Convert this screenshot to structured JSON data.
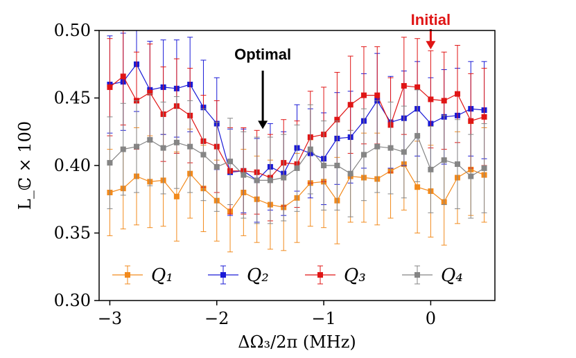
{
  "chart_data": {
    "type": "line",
    "xlabel": "ΔΩ₃/2π (MHz)",
    "ylabel": "L_ℂ × 100",
    "xlim": [
      -3.1,
      0.6
    ],
    "ylim": [
      0.3,
      0.5
    ],
    "xticks": [
      -3,
      -2,
      -1,
      0
    ],
    "xtick_labels": [
      "−3",
      "−2",
      "−1",
      "0"
    ],
    "yticks": [
      0.3,
      0.35,
      0.4,
      0.45,
      0.5
    ],
    "ytick_labels": [
      "0.30",
      "0.35",
      "0.40",
      "0.45",
      "0.50"
    ],
    "grid": false,
    "legend_position": "bottom",
    "legend": [
      "Q1",
      "Q2",
      "Q3",
      "Q4"
    ],
    "x": [
      -3.0,
      -2.875,
      -2.75,
      -2.625,
      -2.5,
      -2.375,
      -2.25,
      -2.125,
      -2.0,
      -1.875,
      -1.75,
      -1.625,
      -1.5,
      -1.375,
      -1.25,
      -1.125,
      -1.0,
      -0.875,
      -0.75,
      -0.625,
      -0.5,
      -0.375,
      -0.25,
      -0.125,
      0.0,
      0.125,
      0.25,
      0.375,
      0.5
    ],
    "series": [
      {
        "name": "Q1",
        "color": "#f28a1c",
        "values": [
          0.38,
          0.383,
          0.392,
          0.388,
          0.389,
          0.377,
          0.394,
          0.383,
          0.374,
          0.366,
          0.38,
          0.375,
          0.371,
          0.369,
          0.376,
          0.387,
          0.388,
          0.374,
          0.392,
          0.391,
          0.39,
          0.396,
          0.401,
          0.384,
          0.381,
          0.373,
          0.391,
          0.397,
          0.393
        ],
        "errors": [
          0.032,
          0.03,
          0.036,
          0.034,
          0.034,
          0.033,
          0.033,
          0.032,
          0.03,
          0.03,
          0.032,
          0.032,
          0.033,
          0.032,
          0.033,
          0.032,
          0.034,
          0.032,
          0.034,
          0.033,
          0.034,
          0.035,
          0.034,
          0.034,
          0.034,
          0.032,
          0.034,
          0.034,
          0.035
        ]
      },
      {
        "name": "Q2",
        "color": "#1a1ad6",
        "values": [
          0.46,
          0.462,
          0.475,
          0.456,
          0.458,
          0.457,
          0.46,
          0.443,
          0.431,
          0.395,
          0.396,
          0.389,
          0.399,
          0.394,
          0.413,
          0.409,
          0.405,
          0.42,
          0.421,
          0.433,
          0.448,
          0.432,
          0.435,
          0.442,
          0.431,
          0.436,
          0.437,
          0.442,
          0.441
        ],
        "errors": [
          0.036,
          0.036,
          0.035,
          0.036,
          0.035,
          0.036,
          0.035,
          0.035,
          0.034,
          0.032,
          0.031,
          0.031,
          0.032,
          0.031,
          0.032,
          0.033,
          0.034,
          0.034,
          0.034,
          0.035,
          0.035,
          0.034,
          0.035,
          0.035,
          0.034,
          0.035,
          0.035,
          0.035,
          0.036
        ]
      },
      {
        "name": "Q3",
        "color": "#e01515",
        "values": [
          0.458,
          0.466,
          0.448,
          0.454,
          0.438,
          0.444,
          0.437,
          0.418,
          0.414,
          0.396,
          0.396,
          0.395,
          0.391,
          0.402,
          0.401,
          0.421,
          0.423,
          0.434,
          0.445,
          0.452,
          0.452,
          0.43,
          0.459,
          0.458,
          0.449,
          0.448,
          0.453,
          0.433,
          0.436
        ],
        "errors": [
          0.036,
          0.036,
          0.036,
          0.036,
          0.035,
          0.035,
          0.035,
          0.034,
          0.034,
          0.032,
          0.032,
          0.031,
          0.032,
          0.032,
          0.032,
          0.034,
          0.035,
          0.035,
          0.036,
          0.036,
          0.036,
          0.035,
          0.036,
          0.036,
          0.036,
          0.036,
          0.036,
          0.035,
          0.036
        ]
      },
      {
        "name": "Q4",
        "color": "#858585",
        "values": [
          0.402,
          0.412,
          0.414,
          0.419,
          0.413,
          0.417,
          0.414,
          0.408,
          0.399,
          0.403,
          0.393,
          0.389,
          0.389,
          0.391,
          0.398,
          0.412,
          0.4,
          0.4,
          0.394,
          0.408,
          0.414,
          0.413,
          0.41,
          0.422,
          0.397,
          0.404,
          0.401,
          0.392,
          0.398
        ],
        "errors": [
          0.034,
          0.034,
          0.034,
          0.034,
          0.034,
          0.034,
          0.034,
          0.034,
          0.033,
          0.032,
          0.032,
          0.032,
          0.032,
          0.032,
          0.032,
          0.033,
          0.033,
          0.033,
          0.032,
          0.034,
          0.034,
          0.034,
          0.034,
          0.034,
          0.032,
          0.033,
          0.033,
          0.031,
          0.033
        ]
      }
    ],
    "annotations": [
      {
        "text": "Optimal",
        "color": "#000000",
        "x": -1.57,
        "arrow_to_y": 0.427
      },
      {
        "text": "Initial",
        "color": "#e01515",
        "x": 0.0,
        "arrow_to_y": 0.486
      }
    ]
  }
}
